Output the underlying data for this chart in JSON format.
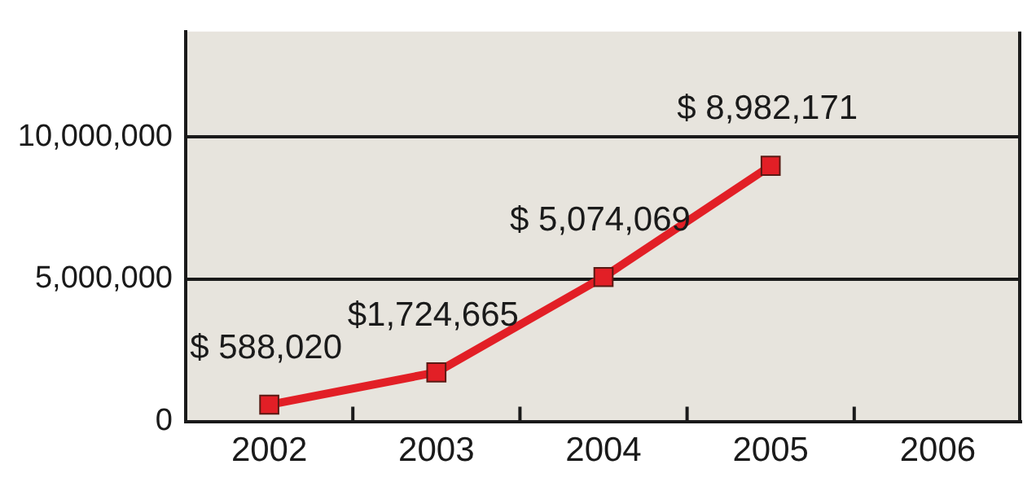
{
  "chart_data": {
    "type": "line",
    "categories": [
      "2002",
      "2003",
      "2004",
      "2005",
      "2006"
    ],
    "series": [
      {
        "color": "#e21f26",
        "values": [
          588020,
          1724665,
          5074069,
          8982171,
          null
        ],
        "value_labels": [
          "$ 588,020",
          "$1,724,665",
          "$ 5,074,069",
          "$ 8,982,171",
          null
        ]
      }
    ],
    "ylim": [
      0,
      13700000
    ],
    "yticks": [
      {
        "value": 0,
        "label": "0"
      },
      {
        "value": 5000000,
        "label": "5,000,000"
      },
      {
        "value": 10000000,
        "label": "10,000,000"
      }
    ],
    "grid": "y",
    "marker": "square",
    "line_style": "solid",
    "legend": false
  }
}
